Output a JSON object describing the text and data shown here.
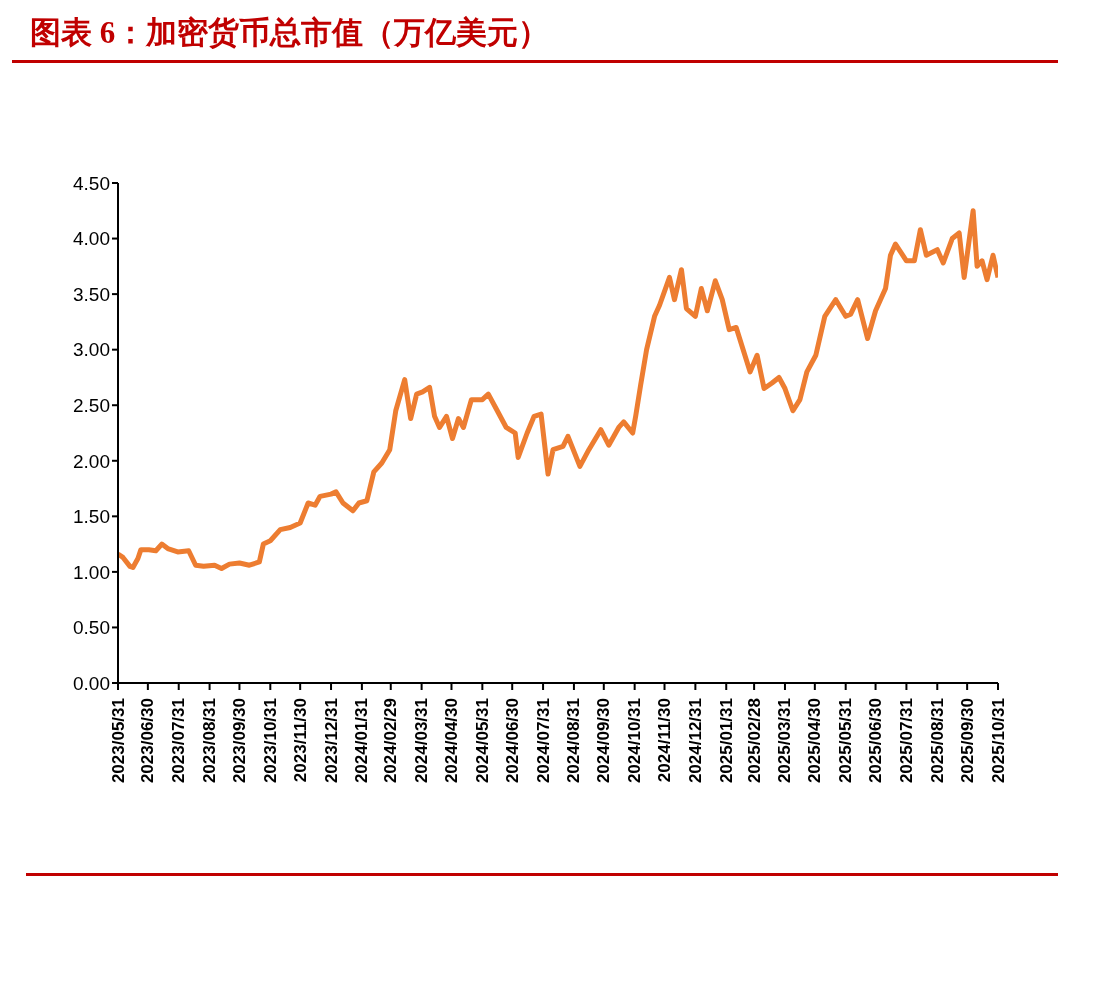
{
  "chart_data": {
    "type": "line",
    "title": "图表 6：加密货币总市值（万亿美元）",
    "x": [
      "2023-05-31",
      "2023-06-05",
      "2023-06-12",
      "2023-06-15",
      "2023-06-20",
      "2023-06-23",
      "2023-07-01",
      "2023-07-08",
      "2023-07-14",
      "2023-07-20",
      "2023-07-30",
      "2023-08-10",
      "2023-08-17",
      "2023-08-25",
      "2023-09-05",
      "2023-09-12",
      "2023-09-20",
      "2023-09-30",
      "2023-10-10",
      "2023-10-20",
      "2023-10-24",
      "2023-10-31",
      "2023-11-10",
      "2023-11-20",
      "2023-11-30",
      "2023-12-08",
      "2023-12-15",
      "2023-12-20",
      "2023-12-31",
      "2024-01-05",
      "2024-01-12",
      "2024-01-22",
      "2024-01-28",
      "2024-02-05",
      "2024-02-12",
      "2024-02-20",
      "2024-02-28",
      "2024-03-05",
      "2024-03-14",
      "2024-03-20",
      "2024-03-26",
      "2024-04-01",
      "2024-04-08",
      "2024-04-13",
      "2024-04-18",
      "2024-04-25",
      "2024-05-01",
      "2024-05-07",
      "2024-05-12",
      "2024-05-20",
      "2024-05-31",
      "2024-06-06",
      "2024-06-15",
      "2024-06-24",
      "2024-07-03",
      "2024-07-06",
      "2024-07-15",
      "2024-07-22",
      "2024-07-29",
      "2024-08-05",
      "2024-08-10",
      "2024-08-20",
      "2024-08-25",
      "2024-09-06",
      "2024-09-15",
      "2024-09-27",
      "2024-10-05",
      "2024-10-15",
      "2024-10-20",
      "2024-10-29",
      "2024-11-01",
      "2024-11-06",
      "2024-11-12",
      "2024-11-20",
      "2024-11-25",
      "2024-12-05",
      "2024-12-10",
      "2024-12-17",
      "2024-12-22",
      "2024-12-31",
      "2025-01-06",
      "2025-01-12",
      "2025-01-20",
      "2025-01-27",
      "2025-02-03",
      "2025-02-10",
      "2025-02-24",
      "2025-03-03",
      "2025-03-10",
      "2025-03-18",
      "2025-03-25",
      "2025-03-31",
      "2025-04-08",
      "2025-04-15",
      "2025-04-22",
      "2025-05-01",
      "2025-05-10",
      "2025-05-21",
      "2025-05-31",
      "2025-06-05",
      "2025-06-12",
      "2025-06-22",
      "2025-06-30",
      "2025-07-10",
      "2025-07-15",
      "2025-07-20",
      "2025-07-31",
      "2025-08-08",
      "2025-08-14",
      "2025-08-20",
      "2025-08-31",
      "2025-09-06",
      "2025-09-15",
      "2025-09-22",
      "2025-09-27",
      "2025-10-06",
      "2025-10-10",
      "2025-10-15",
      "2025-10-20",
      "2025-10-26",
      "2025-10-31"
    ],
    "series": [
      {
        "color": "#ed7d31",
        "values": [
          1.16,
          1.13,
          1.05,
          1.04,
          1.12,
          1.2,
          1.2,
          1.19,
          1.25,
          1.21,
          1.18,
          1.19,
          1.06,
          1.05,
          1.06,
          1.03,
          1.07,
          1.08,
          1.06,
          1.09,
          1.25,
          1.28,
          1.38,
          1.4,
          1.44,
          1.62,
          1.6,
          1.68,
          1.7,
          1.72,
          1.62,
          1.55,
          1.62,
          1.64,
          1.9,
          1.98,
          2.1,
          2.45,
          2.73,
          2.38,
          2.6,
          2.62,
          2.66,
          2.4,
          2.3,
          2.4,
          2.2,
          2.38,
          2.3,
          2.55,
          2.55,
          2.6,
          2.45,
          2.3,
          2.25,
          2.03,
          2.25,
          2.4,
          2.42,
          1.88,
          2.1,
          2.13,
          2.22,
          1.95,
          2.1,
          2.28,
          2.14,
          2.3,
          2.35,
          2.25,
          2.4,
          2.68,
          3.0,
          3.3,
          3.4,
          3.65,
          3.45,
          3.72,
          3.37,
          3.3,
          3.55,
          3.35,
          3.62,
          3.45,
          3.18,
          3.2,
          2.8,
          2.95,
          2.65,
          2.7,
          2.75,
          2.65,
          2.45,
          2.55,
          2.8,
          2.95,
          3.3,
          3.45,
          3.3,
          3.32,
          3.45,
          3.1,
          3.35,
          3.55,
          3.85,
          3.95,
          3.8,
          3.8,
          4.08,
          3.85,
          3.9,
          3.78,
          4.0,
          4.05,
          3.65,
          4.25,
          3.75,
          3.8,
          3.63,
          3.85,
          3.65
        ]
      }
    ],
    "xlim": [
      "2023-05-31",
      "2025-10-31"
    ],
    "xticks": [
      {
        "value": "2023-05-31",
        "label": "2023/05/31"
      },
      {
        "value": "2023-06-30",
        "label": "2023/06/30"
      },
      {
        "value": "2023-07-31",
        "label": "2023/07/31"
      },
      {
        "value": "2023-08-31",
        "label": "2023/08/31"
      },
      {
        "value": "2023-09-30",
        "label": "2023/09/30"
      },
      {
        "value": "2023-10-31",
        "label": "2023/10/31"
      },
      {
        "value": "2023-11-30",
        "label": "2023/11/30"
      },
      {
        "value": "2023-12-31",
        "label": "2023/12/31"
      },
      {
        "value": "2024-01-31",
        "label": "2024/01/31"
      },
      {
        "value": "2024-02-29",
        "label": "2024/02/29"
      },
      {
        "value": "2024-03-31",
        "label": "2024/03/31"
      },
      {
        "value": "2024-04-30",
        "label": "2024/04/30"
      },
      {
        "value": "2024-05-31",
        "label": "2024/05/31"
      },
      {
        "value": "2024-06-30",
        "label": "2024/06/30"
      },
      {
        "value": "2024-07-31",
        "label": "2024/07/31"
      },
      {
        "value": "2024-08-31",
        "label": "2024/08/31"
      },
      {
        "value": "2024-09-30",
        "label": "2024/09/30"
      },
      {
        "value": "2024-10-31",
        "label": "2024/10/31"
      },
      {
        "value": "2024-11-30",
        "label": "2024/11/30"
      },
      {
        "value": "2024-12-31",
        "label": "2024/12/31"
      },
      {
        "value": "2025-01-31",
        "label": "2025/01/31"
      },
      {
        "value": "2025-02-28",
        "label": "2025/02/28"
      },
      {
        "value": "2025-03-31",
        "label": "2025/03/31"
      },
      {
        "value": "2025-04-30",
        "label": "2025/04/30"
      },
      {
        "value": "2025-05-31",
        "label": "2025/05/31"
      },
      {
        "value": "2025-06-30",
        "label": "2025/06/30"
      },
      {
        "value": "2025-07-31",
        "label": "2025/07/31"
      },
      {
        "value": "2025-08-31",
        "label": "2025/08/31"
      },
      {
        "value": "2025-09-30",
        "label": "2025/09/30"
      },
      {
        "value": "2025-10-31",
        "label": "2025/10/31"
      }
    ],
    "ylim": [
      0,
      4.5
    ],
    "yticks": [
      {
        "value": 0,
        "label": "0.00"
      },
      {
        "value": 0.5,
        "label": "0.50"
      },
      {
        "value": 1,
        "label": "1.00"
      },
      {
        "value": 1.5,
        "label": "1.50"
      },
      {
        "value": 2,
        "label": "2.00"
      },
      {
        "value": 2.5,
        "label": "2.50"
      },
      {
        "value": 3,
        "label": "3.00"
      },
      {
        "value": 3.5,
        "label": "3.50"
      },
      {
        "value": 4,
        "label": "4.00"
      },
      {
        "value": 4.5,
        "label": "4.50"
      }
    ]
  }
}
